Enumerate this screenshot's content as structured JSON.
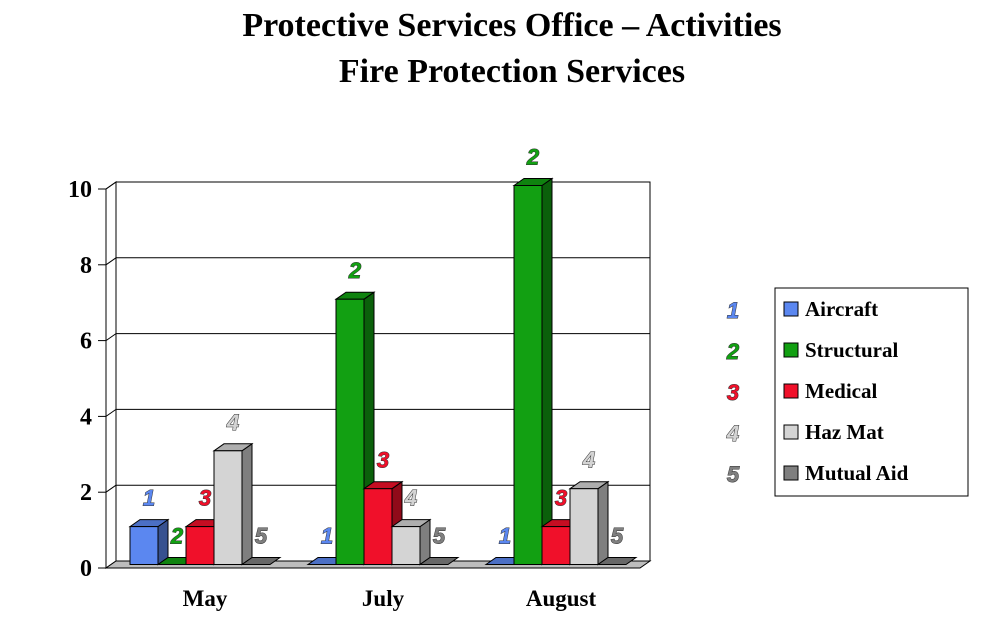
{
  "chart_data": {
    "type": "bar",
    "title": "Protective Services Office – Activities",
    "subtitle": "Fire Protection Services",
    "categories": [
      "May",
      "July",
      "August"
    ],
    "series": [
      {
        "name": "Aircraft",
        "label": "1",
        "color": "#5b87f0",
        "values": [
          1,
          0,
          0
        ]
      },
      {
        "name": "Structural",
        "label": "2",
        "color": "#12a012",
        "values": [
          0,
          7,
          10
        ]
      },
      {
        "name": "Medical",
        "label": "3",
        "color": "#f0102a",
        "values": [
          1,
          2,
          1
        ]
      },
      {
        "name": "Haz Mat",
        "label": "4",
        "color": "#d4d4d4",
        "values": [
          3,
          1,
          2
        ]
      },
      {
        "name": "Mutual Aid",
        "label": "5",
        "color": "#7f7f7f",
        "values": [
          0,
          0,
          0
        ]
      }
    ],
    "ylim": [
      0,
      10
    ],
    "yticks": [
      0,
      2,
      4,
      6,
      8,
      10
    ],
    "grid": true,
    "legend_position": "right"
  }
}
